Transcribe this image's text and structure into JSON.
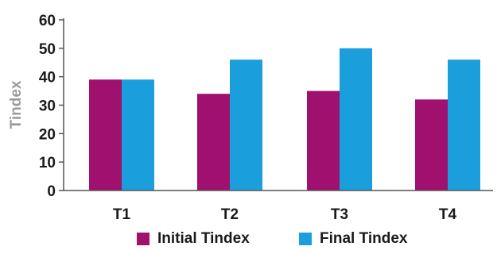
{
  "chart_data": {
    "type": "bar",
    "title": "",
    "xlabel": "",
    "ylabel": "Tindex",
    "ylim": [
      0,
      60
    ],
    "yticks": [
      0,
      10,
      20,
      30,
      40,
      50,
      60
    ],
    "grid": false,
    "legend_position": "bottom",
    "categories": [
      "T1",
      "T2",
      "T3",
      "T4"
    ],
    "series": [
      {
        "name": "Initial Tindex",
        "color": "#a0106e",
        "values": [
          39,
          34,
          35,
          32
        ]
      },
      {
        "name": "Final Tindex",
        "color": "#1a9fdc",
        "values": [
          39,
          46,
          50,
          46
        ]
      }
    ]
  }
}
